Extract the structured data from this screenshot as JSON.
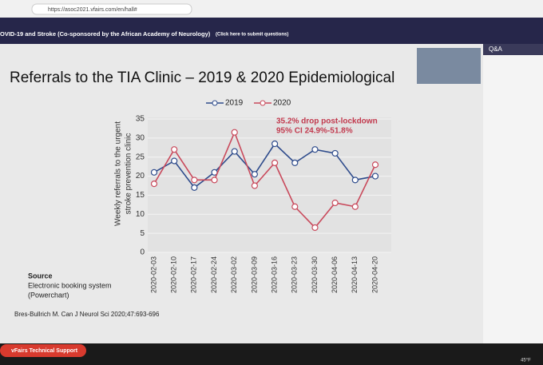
{
  "browser": {
    "url": "https://asoc2021.vfairs.com/en/hall#"
  },
  "header": {
    "title": "OVID-19 and Stroke (Co-sponsored by the African Academy of Neurology)",
    "link": "(Click here to submit questions)"
  },
  "side_panel": {
    "title": "Q&A"
  },
  "slide": {
    "title": "Referrals to the TIA Clinic – 2019 & 2020 Epidemiological",
    "source": [
      "Source",
      "Electronic booking system",
      "(Powerchart)"
    ],
    "citation": "Bres-Bullrich M. Can J Neurol Sci 2020;47:693-696"
  },
  "footer": {
    "button": "vFairs Technical Support",
    "weather": "45°F"
  },
  "chart_data": {
    "type": "line",
    "y_label": [
      "Weekly referrals to the urgent",
      "stroke prevention clinic"
    ],
    "annotation": [
      "35.2% drop post-lockdown",
      "95% CI 24.9%-51.8%"
    ],
    "x": [
      "2020-02-03",
      "2020-02-10",
      "2020-02-17",
      "2020-02-24",
      "2020-03-02",
      "2020-03-09",
      "2020-03-16",
      "2020-03-23",
      "2020-03-30",
      "2020-04-06",
      "2020-04-13",
      "2020-04-20"
    ],
    "series": [
      {
        "name": "2019",
        "color": "#2f4c8c",
        "values": [
          21,
          24,
          17,
          21,
          26.5,
          20.5,
          28.5,
          23.5,
          27,
          26,
          19,
          20
        ]
      },
      {
        "name": "2020",
        "color": "#c94a5c",
        "values": [
          18,
          27,
          19,
          19,
          31.5,
          17.5,
          23.5,
          12,
          6.5,
          13,
          12,
          23
        ]
      }
    ],
    "ylim": [
      0,
      35
    ],
    "yticks": [
      0,
      5,
      10,
      15,
      20,
      25,
      30,
      35
    ],
    "grid": true,
    "legend": "top"
  }
}
